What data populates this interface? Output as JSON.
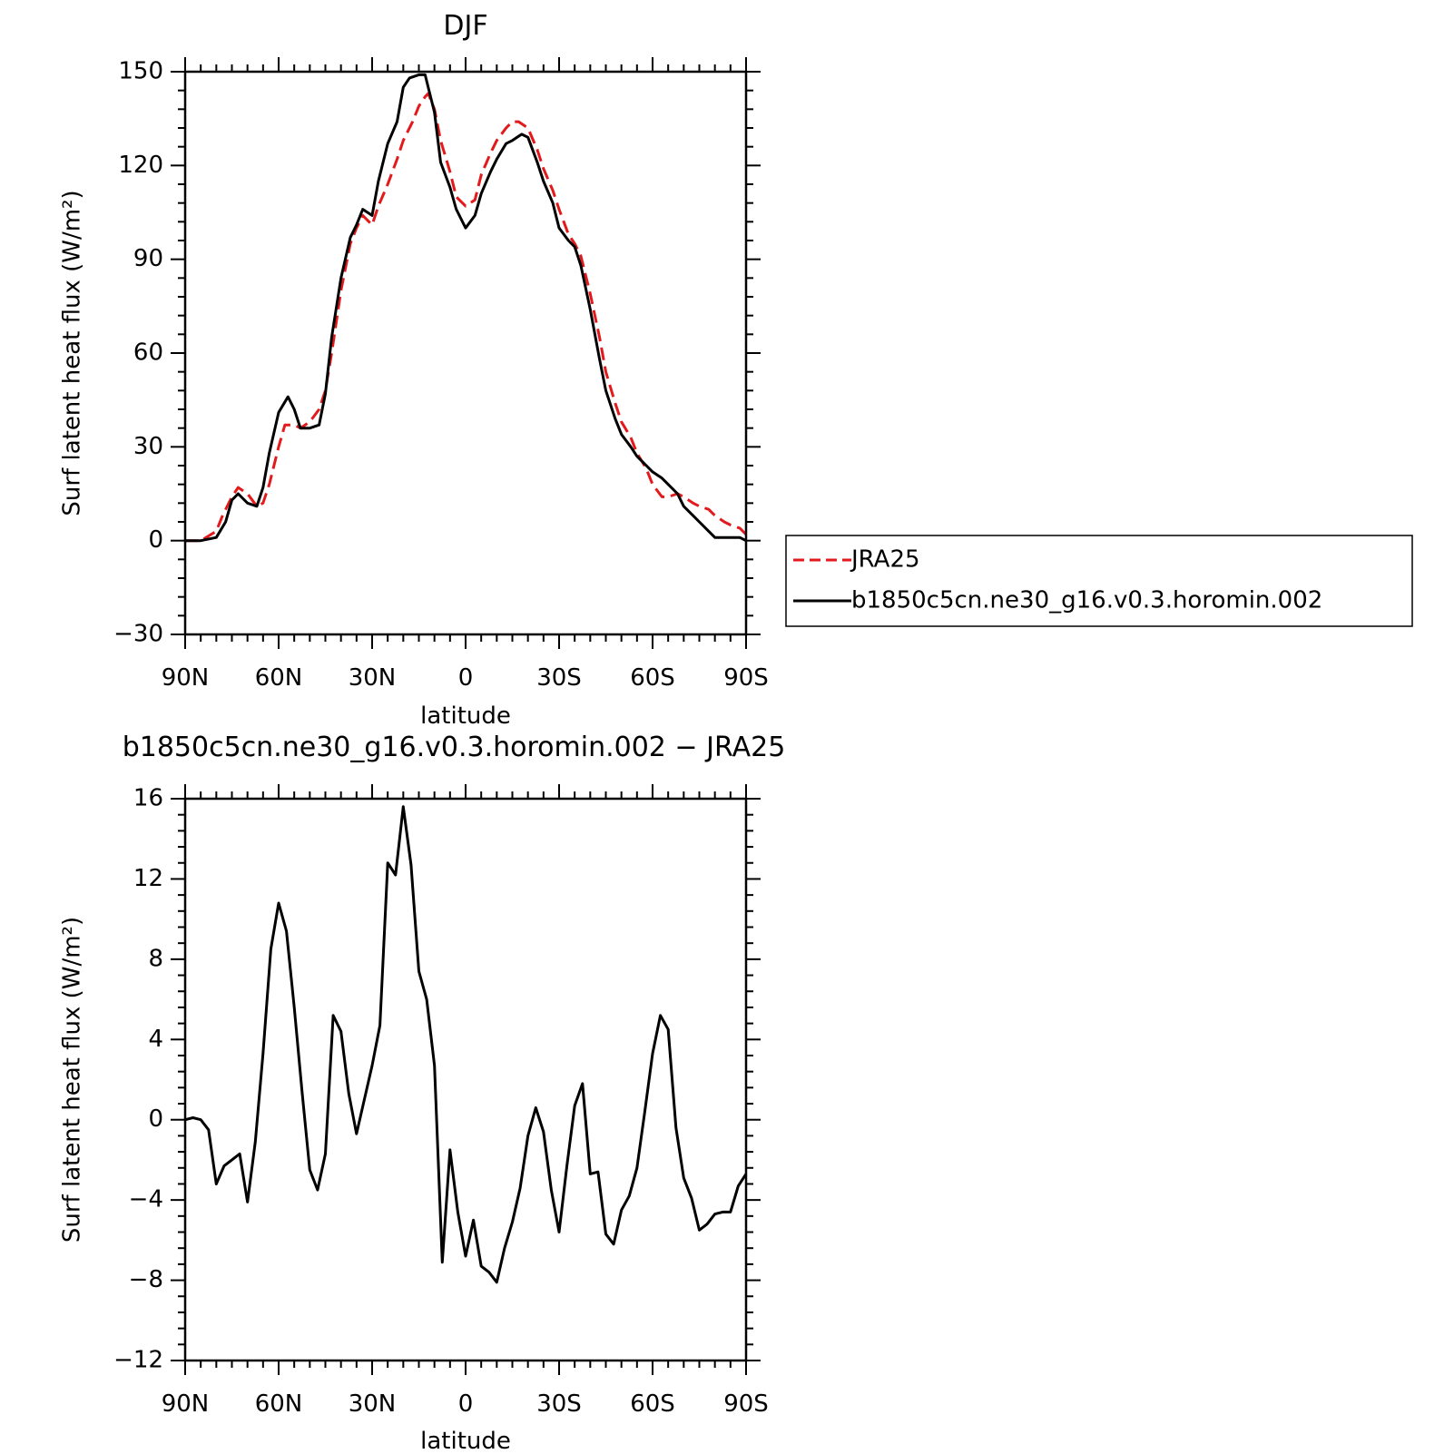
{
  "figure": {
    "colors": {
      "model": "#000000",
      "obs": "#e31a1c"
    }
  },
  "chart_data": [
    {
      "type": "line",
      "title": "DJF",
      "xlabel": "latitude",
      "ylabel": "Surf latent heat flux (W/m²)",
      "xlim": [
        90,
        -90
      ],
      "ylim": [
        -30,
        150
      ],
      "yticks": [
        -30,
        0,
        30,
        60,
        90,
        120,
        150
      ],
      "xticks": [
        90,
        60,
        30,
        0,
        -30,
        -60,
        -90
      ],
      "xtick_labels": [
        "90N",
        "60N",
        "30N",
        "0",
        "30S",
        "60S",
        "90S"
      ],
      "grid": false,
      "legend": {
        "placement": "right",
        "entries": [
          "JRA25",
          "b1850c5cn.ne30_g16.v0.3.horomin.002"
        ]
      },
      "series": [
        {
          "name": "JRA25",
          "style": "dashed",
          "color": "#e31a1c",
          "x": [
            90,
            85,
            80,
            78,
            75,
            73,
            70,
            67,
            65,
            63,
            60,
            58,
            55,
            53,
            50,
            47,
            45,
            43,
            40,
            37,
            35,
            33,
            30,
            28,
            25,
            22,
            20,
            17,
            15,
            13,
            12,
            10,
            8,
            5,
            3,
            0,
            -3,
            -5,
            -8,
            -10,
            -13,
            -15,
            -17,
            -20,
            -23,
            -25,
            -28,
            -30,
            -33,
            -35,
            -37,
            -40,
            -43,
            -45,
            -48,
            -50,
            -53,
            -55,
            -58,
            -60,
            -63,
            -65,
            -68,
            -70,
            -73,
            -75,
            -78,
            -80,
            -83,
            -85,
            -88,
            -90
          ],
          "y": [
            0,
            0,
            3,
            8,
            14,
            17,
            15,
            11,
            12,
            18,
            30,
            37,
            37,
            36,
            38,
            42,
            48,
            60,
            80,
            95,
            100,
            104,
            101,
            107,
            114,
            122,
            128,
            134,
            139,
            142,
            143,
            138,
            128,
            118,
            110,
            107,
            109,
            117,
            124,
            128,
            132,
            134,
            134,
            132,
            125,
            119,
            112,
            106,
            98,
            95,
            91,
            79,
            65,
            54,
            44,
            38,
            33,
            28,
            23,
            18,
            14,
            14,
            15,
            14,
            12,
            11,
            10,
            8,
            6,
            5,
            4,
            2
          ]
        },
        {
          "name": "b1850c5cn.ne30_g16.v0.3.horomin.002",
          "style": "solid",
          "color": "#000000",
          "x": [
            90,
            85,
            80,
            77,
            75,
            73,
            70,
            67,
            65,
            63,
            60,
            57,
            55,
            53,
            50,
            47,
            45,
            43,
            40,
            37,
            35,
            33,
            30,
            28,
            25,
            22,
            20,
            18,
            15,
            13,
            12,
            10,
            8,
            5,
            3,
            0,
            -3,
            -5,
            -8,
            -10,
            -13,
            -15,
            -18,
            -20,
            -23,
            -25,
            -28,
            -30,
            -33,
            -35,
            -37,
            -40,
            -43,
            -45,
            -48,
            -50,
            -53,
            -55,
            -58,
            -60,
            -63,
            -65,
            -68,
            -70,
            -73,
            -75,
            -78,
            -80,
            -83,
            -85,
            -88,
            -90
          ],
          "y": [
            0,
            0,
            1,
            6,
            13,
            15,
            12,
            11,
            17,
            28,
            41,
            46,
            42,
            36,
            36,
            37,
            47,
            65,
            84,
            97,
            101,
            106,
            104,
            115,
            127,
            134,
            145,
            148,
            149,
            149,
            145,
            137,
            121,
            113,
            106,
            100,
            104,
            111,
            118,
            122,
            127,
            128,
            130,
            129,
            121,
            115,
            108,
            100,
            96,
            94,
            88,
            74,
            58,
            48,
            39,
            34,
            30,
            27,
            24,
            22,
            20,
            18,
            15,
            11,
            8,
            6,
            3,
            1,
            1,
            1,
            1,
            0
          ]
        }
      ]
    },
    {
      "type": "line",
      "title": "b1850c5cn.ne30_g16.v0.3.horomin.002 − JRA25",
      "xlabel": "latitude",
      "ylabel": "Surf latent heat flux (W/m²)",
      "xlim": [
        90,
        -90
      ],
      "ylim": [
        -12,
        16
      ],
      "yticks": [
        -12,
        -8,
        -4,
        0,
        4,
        8,
        12,
        16
      ],
      "xticks": [
        90,
        60,
        30,
        0,
        -30,
        -60,
        -90
      ],
      "xtick_labels": [
        "90N",
        "60N",
        "30N",
        "0",
        "30S",
        "60S",
        "90S"
      ],
      "grid": false,
      "series": [
        {
          "style": "solid",
          "color": "#000000",
          "x": [
            90,
            87.5,
            85,
            82.5,
            80,
            77.5,
            75,
            72.5,
            70,
            67.5,
            65,
            62.5,
            60,
            57.5,
            55,
            52.5,
            50,
            47.5,
            45,
            42.5,
            40,
            37.5,
            35,
            32.5,
            30,
            27.5,
            25,
            22.5,
            20,
            17.5,
            15,
            12.5,
            10,
            7.5,
            5,
            2.5,
            0,
            -2.5,
            -5,
            -7.5,
            -10,
            -12.5,
            -15,
            -17.5,
            -20,
            -22.5,
            -25,
            -27.5,
            -30,
            -32.5,
            -35,
            -37.5,
            -40,
            -42.5,
            -45,
            -47.5,
            -50,
            -52.5,
            -55,
            -57.5,
            -60,
            -62.5,
            -65,
            -67.5,
            -70,
            -72.5,
            -75,
            -77.5,
            -80,
            -82.5,
            -85,
            -87.5,
            -90
          ],
          "y": [
            0.0,
            0.1,
            0.0,
            -0.5,
            -3.2,
            -2.3,
            -2.0,
            -1.7,
            -4.1,
            -1.1,
            3.3,
            8.5,
            10.8,
            9.4,
            5.6,
            1.4,
            -2.5,
            -3.5,
            -1.7,
            5.2,
            4.4,
            1.3,
            -0.7,
            1.0,
            2.7,
            4.7,
            12.8,
            12.2,
            15.6,
            12.7,
            7.4,
            6.0,
            2.7,
            -7.1,
            -1.5,
            -4.6,
            -6.8,
            -5.0,
            -7.3,
            -7.6,
            -8.1,
            -6.4,
            -5.1,
            -3.4,
            -0.8,
            0.6,
            -0.6,
            -3.5,
            -5.6,
            -2.3,
            0.7,
            1.8,
            -2.7,
            -2.6,
            -5.7,
            -6.2,
            -4.5,
            -3.8,
            -2.4,
            0.4,
            3.3,
            5.2,
            4.5,
            -0.4,
            -2.9,
            -3.9,
            -5.5,
            -5.2,
            -4.7,
            -4.6,
            -4.6,
            -3.3,
            -2.7
          ]
        }
      ]
    }
  ]
}
